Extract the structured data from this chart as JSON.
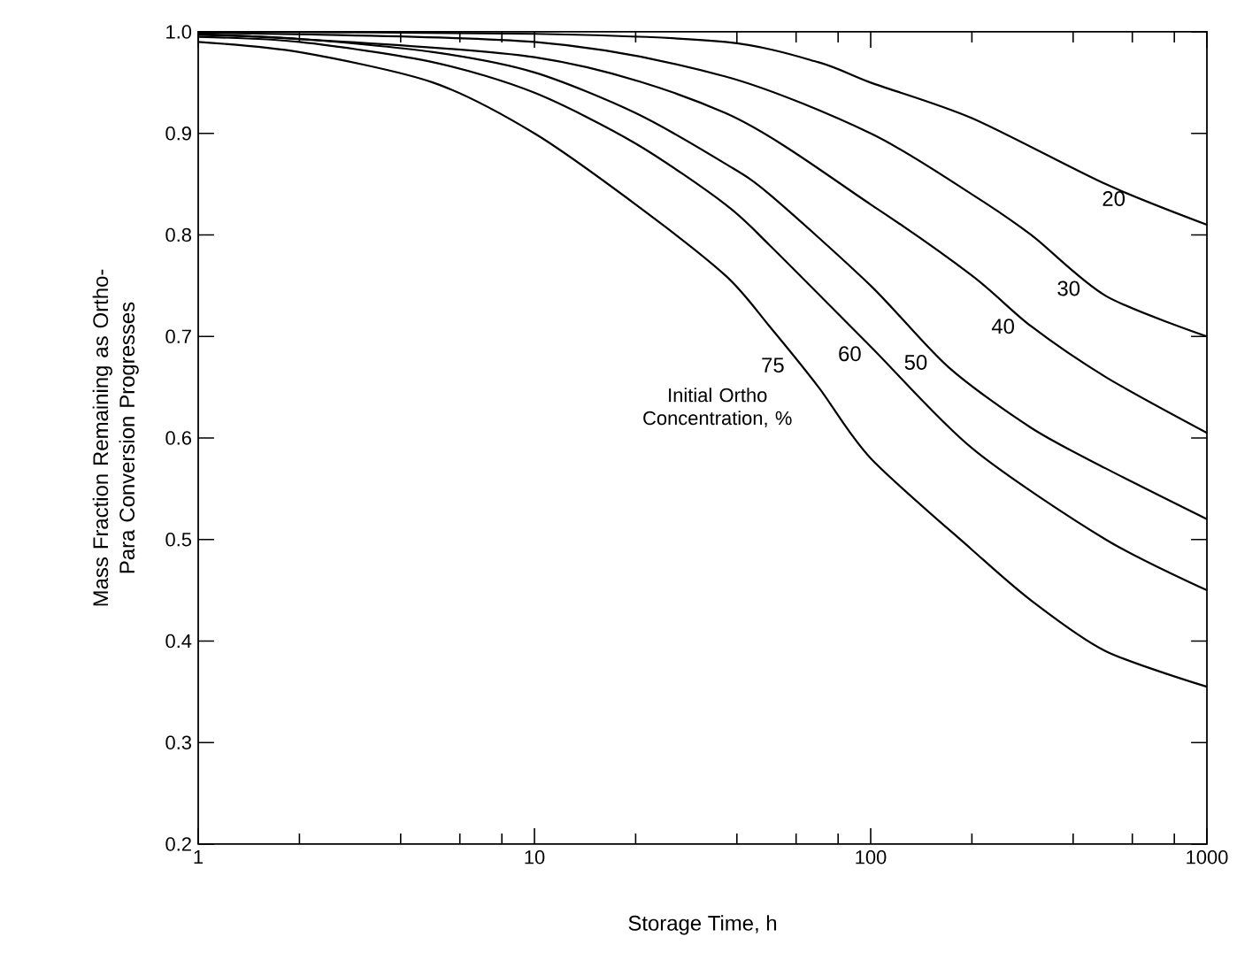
{
  "chart_data": {
    "type": "line",
    "xlabel": "Storage Time, h",
    "ylabel": "Mass Fraction Remaining as Ortho-Para Conversion Progresses",
    "annotations": [
      "Initial Ortho Concentration, %"
    ],
    "log": "x",
    "grid": false,
    "marker": "none",
    "line_style": "solid",
    "xlim": [
      1,
      1000
    ],
    "ylim": [
      0.2,
      1.0
    ],
    "xticks": [
      1,
      {
        "value": 2,
        "label": null
      },
      {
        "value": 4,
        "label": null
      },
      {
        "value": 6,
        "label": null
      },
      {
        "value": 8,
        "label": null
      },
      10,
      {
        "value": 20,
        "label": null
      },
      {
        "value": 40,
        "label": null
      },
      {
        "value": 60,
        "label": null
      },
      {
        "value": 80,
        "label": null
      },
      100,
      {
        "value": 200,
        "label": null
      },
      {
        "value": 400,
        "label": null
      },
      {
        "value": 600,
        "label": null
      },
      {
        "value": 800,
        "label": null
      },
      1000
    ],
    "yticks": [
      0.2,
      0.3,
      0.4,
      0.5,
      0.6,
      0.7,
      0.8,
      0.9,
      {
        "value": 1.0,
        "label": "1.0"
      }
    ],
    "series": [
      {
        "name": "20",
        "color": "#000000",
        "x": [
          1,
          10,
          37,
          70,
          100,
          200,
          500,
          1000
        ],
        "values": [
          1.0,
          0.998,
          0.99,
          0.97,
          0.95,
          0.915,
          0.85,
          0.81
        ]
      },
      {
        "name": "30",
        "color": "#000000",
        "x": [
          1,
          10,
          37,
          100,
          200,
          300,
          500,
          1000
        ],
        "values": [
          0.999,
          0.99,
          0.956,
          0.9,
          0.84,
          0.8,
          0.74,
          0.7
        ]
      },
      {
        "name": "40",
        "color": "#000000",
        "x": [
          1,
          10,
          37,
          100,
          200,
          300,
          500,
          1000
        ],
        "values": [
          0.998,
          0.975,
          0.92,
          0.83,
          0.76,
          0.71,
          0.66,
          0.605
        ]
      },
      {
        "name": "50",
        "color": "#000000",
        "x": [
          1,
          2,
          5,
          10,
          20,
          37,
          50,
          100,
          170,
          300,
          500,
          1000
        ],
        "values": [
          0.997,
          0.993,
          0.98,
          0.96,
          0.92,
          0.87,
          0.84,
          0.75,
          0.67,
          0.61,
          0.57,
          0.52
        ]
      },
      {
        "name": "60",
        "color": "#000000",
        "x": [
          1,
          2,
          5,
          10,
          20,
          37,
          50,
          100,
          200,
          500,
          1000
        ],
        "values": [
          0.995,
          0.99,
          0.97,
          0.94,
          0.89,
          0.83,
          0.79,
          0.69,
          0.59,
          0.5,
          0.45
        ]
      },
      {
        "name": "75",
        "color": "#000000",
        "x": [
          1,
          2,
          5,
          10,
          20,
          37,
          50,
          70,
          100,
          200,
          300,
          500,
          1000
        ],
        "values": [
          0.99,
          0.98,
          0.95,
          0.9,
          0.83,
          0.76,
          0.71,
          0.65,
          0.58,
          0.49,
          0.44,
          0.39,
          0.355
        ]
      }
    ]
  }
}
